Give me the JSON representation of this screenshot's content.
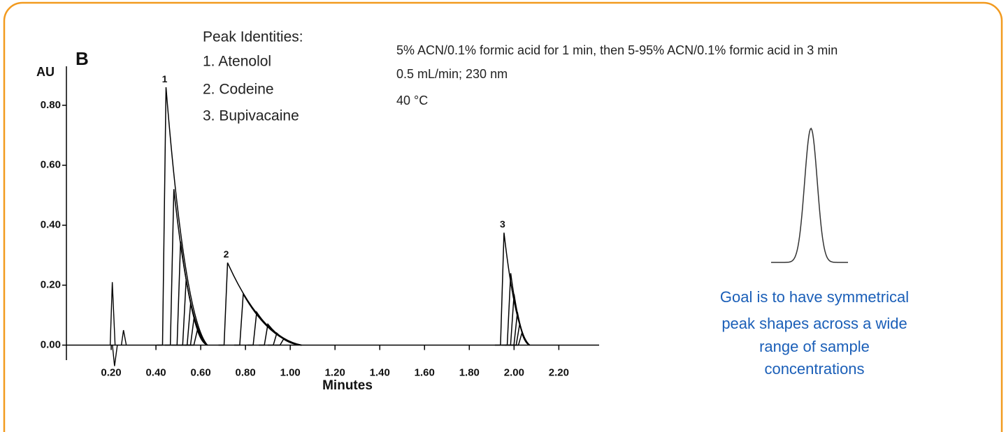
{
  "peak_identities": {
    "heading": "Peak Identities:",
    "items": [
      "1. Atenolol",
      "2. Codeine",
      "3. Bupivacaine"
    ]
  },
  "conditions": [
    "5% ACN/0.1% formic acid for 1 min, then 5-95% ACN/0.1% formic acid in 3 min",
    "0.5 mL/min; 230 nm",
    "40 °C"
  ],
  "goal": [
    "Goal is to have symmetrical",
    "peak shapes across a wide",
    "range of sample",
    "concentrations"
  ],
  "chart_data": {
    "type": "line",
    "panel_label": "B",
    "y_label": "AU",
    "x_label": "Minutes",
    "xlim": [
      0,
      2.38
    ],
    "ylim": [
      -0.05,
      0.93
    ],
    "xticks": [
      {
        "value": 0.2,
        "label": "0.20"
      },
      {
        "value": 0.4,
        "label": "0.40"
      },
      {
        "value": 0.6,
        "label": "0.60"
      },
      {
        "value": 0.8,
        "label": "0.80"
      },
      {
        "value": 1.0,
        "label": "1.00"
      },
      {
        "value": 1.2,
        "label": "1.20"
      },
      {
        "value": 1.4,
        "label": "1.40"
      },
      {
        "value": 1.6,
        "label": "1.60"
      },
      {
        "value": 1.8,
        "label": "1.80"
      },
      {
        "value": 2.0,
        "label": "2.00"
      },
      {
        "value": 2.2,
        "label": "2.20"
      }
    ],
    "yticks": [
      {
        "value": 0,
        "label": "0.00"
      },
      {
        "value": 0.2,
        "label": "0.20"
      },
      {
        "value": 0.4,
        "label": "0.40"
      },
      {
        "value": 0.6,
        "label": "0.60"
      },
      {
        "value": 0.8,
        "label": "0.80"
      }
    ],
    "peaks": [
      {
        "label": "1",
        "x": [
          0.445,
          0.48,
          0.51,
          0.535,
          0.555,
          0.57,
          0.585
        ],
        "values": [
          0.86,
          0.52,
          0.345,
          0.22,
          0.14,
          0.09,
          0.05
        ],
        "end": 0.63
      },
      {
        "label": "2",
        "x": [
          0.72,
          0.79,
          0.85,
          0.9,
          0.94,
          0.97
        ],
        "values": [
          0.275,
          0.17,
          0.11,
          0.07,
          0.04,
          0.02
        ],
        "end": 1.05
      },
      {
        "label": "3",
        "x": [
          1.955,
          1.985,
          2.0,
          2.015,
          2.025,
          2.035
        ],
        "values": [
          0.375,
          0.24,
          0.17,
          0.11,
          0.07,
          0.04
        ],
        "end": 2.07
      }
    ],
    "system_peak": {
      "x": [
        0.205,
        0.215,
        0.255
      ],
      "values": [
        0.21,
        -0.07,
        0.05
      ]
    }
  }
}
